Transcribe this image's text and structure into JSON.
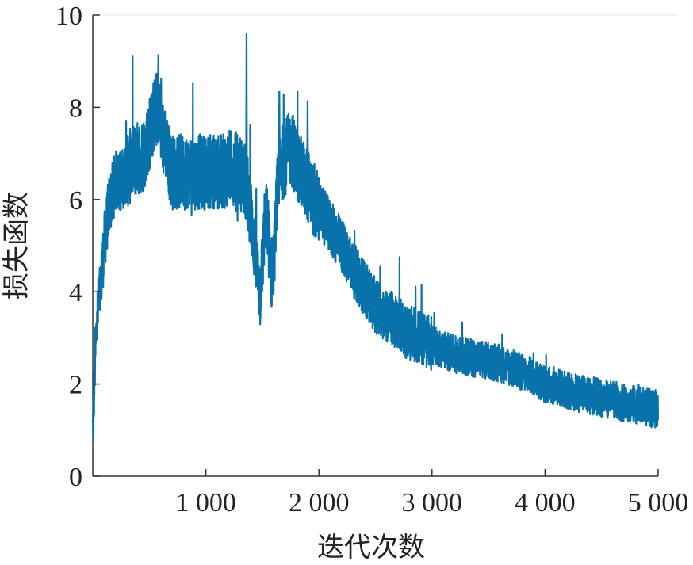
{
  "chart_data": {
    "type": "line",
    "title": "",
    "xlabel": "迭代次数",
    "ylabel": "损失函数",
    "xlim": [
      0,
      5000
    ],
    "ylim": [
      0,
      10
    ],
    "x_ticks": [
      {
        "value": 1000,
        "label": "1 000"
      },
      {
        "value": 2000,
        "label": "2 000"
      },
      {
        "value": 3000,
        "label": "3 000"
      },
      {
        "value": 4000,
        "label": "4 000"
      },
      {
        "value": 5000,
        "label": "5 000"
      }
    ],
    "y_ticks": [
      {
        "value": 0,
        "label": "0"
      },
      {
        "value": 2,
        "label": "2"
      },
      {
        "value": 4,
        "label": "4"
      },
      {
        "value": 6,
        "label": "6"
      },
      {
        "value": 8,
        "label": "8"
      },
      {
        "value": 10,
        "label": "10"
      }
    ],
    "grid": false,
    "line_color": "#0a72ab",
    "series": [
      {
        "x": [
          0,
          20,
          40,
          60,
          80,
          100,
          120,
          140,
          160,
          180,
          200,
          250,
          300,
          350,
          400,
          450,
          500,
          550,
          580,
          600,
          650,
          700,
          750,
          800,
          850,
          900,
          950,
          1000,
          1050,
          1100,
          1150,
          1200,
          1250,
          1300,
          1340,
          1360,
          1380,
          1400,
          1420,
          1440,
          1460,
          1480,
          1500,
          1520,
          1540,
          1560,
          1580,
          1600,
          1620,
          1640,
          1660,
          1680,
          1700,
          1720,
          1740,
          1760,
          1780,
          1800,
          1820,
          1840,
          1860,
          1880,
          1900,
          1950,
          2000,
          2050,
          2100,
          2150,
          2200,
          2250,
          2300,
          2350,
          2400,
          2450,
          2500,
          2600,
          2700,
          2800,
          2900,
          3000,
          3100,
          3200,
          3300,
          3400,
          3500,
          3600,
          3700,
          3800,
          3900,
          4000,
          4100,
          4200,
          4300,
          4400,
          4500,
          4600,
          4700,
          4800,
          4900,
          5000
        ],
        "values": [
          0.9,
          2.5,
          3.5,
          3.9,
          4.4,
          5.0,
          5.4,
          5.8,
          6.0,
          6.2,
          6.4,
          6.4,
          6.6,
          6.8,
          6.9,
          7.0,
          7.4,
          7.9,
          8.0,
          7.6,
          7.0,
          6.6,
          6.6,
          6.6,
          6.6,
          6.6,
          6.6,
          6.6,
          6.6,
          6.6,
          6.6,
          6.7,
          6.7,
          6.6,
          6.4,
          6.3,
          6.0,
          5.6,
          5.2,
          4.8,
          4.3,
          4.0,
          4.6,
          5.4,
          5.6,
          5.0,
          4.4,
          4.6,
          5.6,
          6.5,
          6.8,
          6.8,
          6.9,
          7.0,
          7.1,
          7.1,
          7.0,
          6.8,
          6.7,
          6.6,
          6.5,
          6.4,
          6.3,
          6.0,
          5.8,
          5.6,
          5.4,
          5.2,
          5.0,
          4.8,
          4.5,
          4.3,
          4.1,
          3.9,
          3.7,
          3.5,
          3.3,
          3.1,
          3.0,
          2.85,
          2.75,
          2.65,
          2.6,
          2.55,
          2.5,
          2.45,
          2.35,
          2.25,
          2.15,
          2.0,
          1.95,
          1.85,
          1.8,
          1.75,
          1.7,
          1.65,
          1.6,
          1.55,
          1.5,
          1.45
        ]
      }
    ]
  }
}
